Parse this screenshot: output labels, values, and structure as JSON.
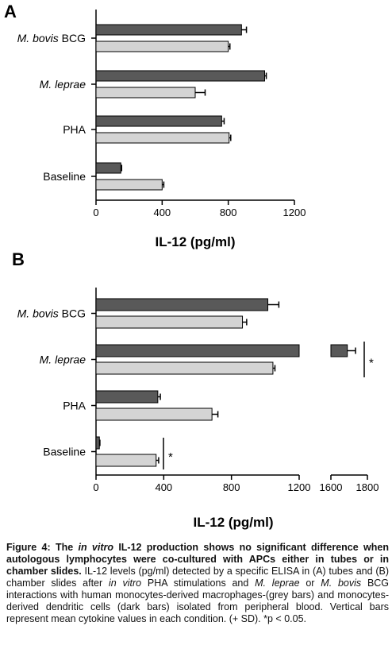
{
  "chart_data": [
    {
      "type": "bar",
      "orientation": "horizontal",
      "panel_label": "A",
      "categories": [
        "M. bovis BCG",
        "M. leprae",
        "PHA",
        "Baseline"
      ],
      "series": [
        {
          "color": "#595959",
          "values": [
            880,
            1020,
            760,
            150
          ],
          "error": [
            30,
            10,
            15,
            5
          ]
        },
        {
          "color": "#d4d4d4",
          "values": [
            800,
            600,
            805,
            400
          ],
          "error": [
            10,
            60,
            10,
            10
          ]
        }
      ],
      "xlabel": "IL-12 (pg/ml)",
      "xlim": [
        0,
        1200
      ],
      "xticks": [
        "0",
        "400",
        "800",
        "1200"
      ],
      "grid": false
    },
    {
      "type": "bar",
      "orientation": "horizontal",
      "panel_label": "B",
      "categories": [
        "M. bovis BCG",
        "M. leprae",
        "PHA",
        "Baseline"
      ],
      "series": [
        {
          "color": "#595959",
          "values": [
            1015,
            1690,
            365,
            20
          ],
          "error": [
            65,
            45,
            15,
            3
          ]
        },
        {
          "color": "#d4d4d4",
          "values": [
            865,
            1045,
            685,
            355
          ],
          "error": [
            25,
            12,
            35,
            15
          ]
        }
      ],
      "xlabel": "IL-12 (pg/ml)",
      "xlim": [
        0,
        1800
      ],
      "axis_break": [
        1200,
        1600
      ],
      "xticks": [
        "0",
        "400",
        "800",
        "1200",
        "1600",
        "1800"
      ],
      "significance": [
        {
          "category": "M. leprae",
          "label": "*"
        },
        {
          "category": "Baseline",
          "label": "*"
        }
      ],
      "grid": false
    }
  ],
  "caption": {
    "figure_label": "Figure 4:",
    "title_part1": "The",
    "title_italic": "in vitro",
    "title_part2": "IL-12 production shows no significant difference when autologous lymphocytes were co-cultured with APCs either in tubes or in chamber slides.",
    "text_part1": "IL-12 levels (pg/ml) detected by a specific ELISA in (A) tubes and (B) chamber slides after",
    "text_italic1": "in vitro",
    "text_part2": "PHA stimulations and",
    "text_italic2": "M. leprae",
    "text_part3": "or",
    "text_italic3": "M. bovis",
    "text_part4": "BCG interactions with human monocytes-derived macrophages-(grey bars) and monocytes-derived dendritic cells (dark bars) isolated from peripheral blood. Vertical bars represent mean cytokine values in each condition. (+ SD). *p < 0.05."
  }
}
